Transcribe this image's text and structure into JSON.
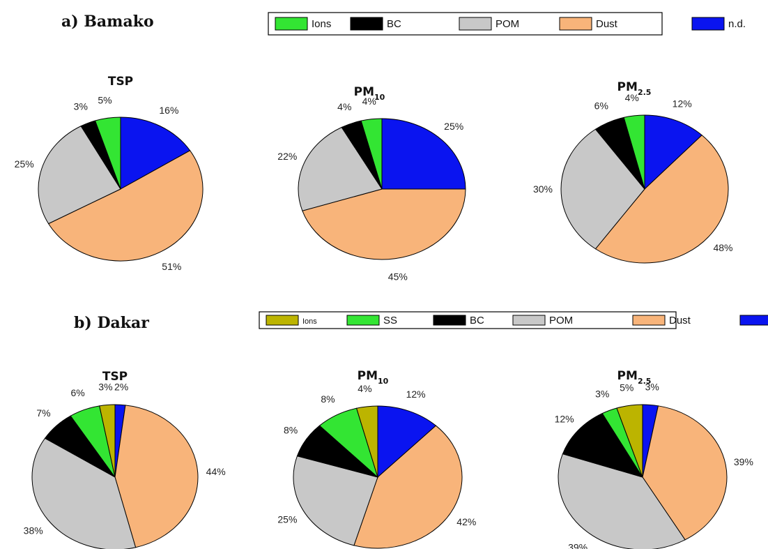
{
  "chart_data": [
    {
      "panel": "a) Bamako",
      "type": "pie",
      "legend": [
        "Ions",
        "BC",
        "POM",
        "Dust",
        "n.d."
      ],
      "colors": {
        "Ions": "#33e533",
        "BC": "#000000",
        "POM": "#c8c8c8",
        "Dust": "#f8b47a",
        "n.d.": "#0a14f0"
      },
      "charts": [
        {
          "title": "TSP",
          "title_sub": "",
          "slices": [
            {
              "name": "n.d.",
              "value": 16,
              "label": "16%"
            },
            {
              "name": "Dust",
              "value": 51,
              "label": "51%"
            },
            {
              "name": "POM",
              "value": 25,
              "label": "25%"
            },
            {
              "name": "BC",
              "value": 3,
              "label": "3%"
            },
            {
              "name": "Ions",
              "value": 5,
              "label": "5%"
            }
          ]
        },
        {
          "title": "PM",
          "title_sub": "10",
          "slices": [
            {
              "name": "n.d.",
              "value": 25,
              "label": "25%"
            },
            {
              "name": "Dust",
              "value": 45,
              "label": "45%"
            },
            {
              "name": "POM",
              "value": 22,
              "label": "22%"
            },
            {
              "name": "BC",
              "value": 4,
              "label": "4%"
            },
            {
              "name": "Ions",
              "value": 4,
              "label": "4%"
            }
          ]
        },
        {
          "title": "PM",
          "title_sub": "2.5",
          "slices": [
            {
              "name": "n.d.",
              "value": 12,
              "label": "12%"
            },
            {
              "name": "Dust",
              "value": 48,
              "label": "48%"
            },
            {
              "name": "POM",
              "value": 30,
              "label": "30%"
            },
            {
              "name": "BC",
              "value": 6,
              "label": "6%"
            },
            {
              "name": "Ions",
              "value": 4,
              "label": "4%"
            }
          ]
        }
      ]
    },
    {
      "panel": "b) Dakar",
      "type": "pie",
      "legend": [
        "Ions",
        "SS",
        "BC",
        "POM",
        "Dust",
        "n.d."
      ],
      "colors": {
        "Ions": "#bcb400",
        "SS": "#33e533",
        "BC": "#000000",
        "POM": "#c8c8c8",
        "Dust": "#f8b47a",
        "n.d.": "#0a14f0"
      },
      "charts": [
        {
          "title": "TSP",
          "title_sub": "",
          "slices": [
            {
              "name": "n.d.",
              "value": 2,
              "label": "2%"
            },
            {
              "name": "Dust",
              "value": 44,
              "label": "44%"
            },
            {
              "name": "POM",
              "value": 38,
              "label": "38%"
            },
            {
              "name": "BC",
              "value": 7,
              "label": "7%"
            },
            {
              "name": "SS",
              "value": 6,
              "label": "6%"
            },
            {
              "name": "Ions",
              "value": 3,
              "label": "3%"
            }
          ]
        },
        {
          "title": "PM",
          "title_sub": "10",
          "slices": [
            {
              "name": "n.d.",
              "value": 12,
              "label": "12%"
            },
            {
              "name": "Dust",
              "value": 42,
              "label": "42%"
            },
            {
              "name": "POM",
              "value": 25,
              "label": "25%"
            },
            {
              "name": "BC",
              "value": 8,
              "label": "8%"
            },
            {
              "name": "SS",
              "value": 8,
              "label": "8%"
            },
            {
              "name": "Ions",
              "value": 4,
              "label": "4%"
            }
          ]
        },
        {
          "title": "PM",
          "title_sub": "2.5",
          "slices": [
            {
              "name": "n.d.",
              "value": 3,
              "label": "3%"
            },
            {
              "name": "Dust",
              "value": 39,
              "label": "39%"
            },
            {
              "name": "POM",
              "value": 39,
              "label": "39%"
            },
            {
              "name": "BC",
              "value": 12,
              "label": "12%"
            },
            {
              "name": "SS",
              "value": 3,
              "label": "3%"
            },
            {
              "name": "Ions",
              "value": 5,
              "label": "5%"
            }
          ]
        }
      ]
    }
  ]
}
